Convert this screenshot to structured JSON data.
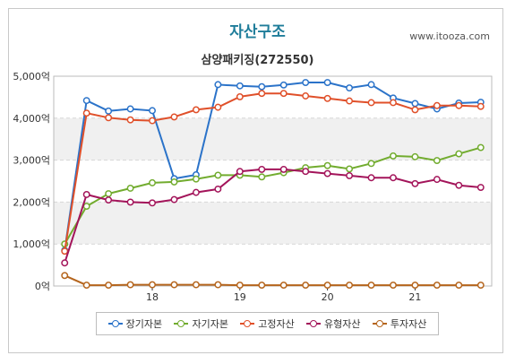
{
  "header": {
    "title": "자산구조",
    "subtitle": "삼양패키징(272550)",
    "source": "www.itooza.com"
  },
  "chart_data": {
    "type": "line",
    "title": "자산구조",
    "subtitle": "삼양패키징(272550)",
    "xlabel": "",
    "ylabel": "",
    "y_tick_labels": [
      "0억",
      "1,000억",
      "2,000억",
      "3,000억",
      "4,000억",
      "5,000억"
    ],
    "y_ticks": [
      0,
      1000,
      2000,
      3000,
      4000,
      5000
    ],
    "ylim": [
      0,
      5000
    ],
    "x_tick_labels": [
      "18",
      "19",
      "20",
      "21"
    ],
    "x_ticks": [
      4,
      8,
      12,
      16
    ],
    "xlim": [
      -0.5,
      19.5
    ],
    "grid": true,
    "legend_position": "bottom",
    "x": [
      0,
      1,
      2,
      3,
      4,
      5,
      6,
      7,
      8,
      9,
      10,
      11,
      12,
      13,
      14,
      15,
      16,
      17,
      18,
      19
    ],
    "series": [
      {
        "name": "장기자본",
        "color": "#2b73c9",
        "values": [
          850,
          4420,
          4170,
          4220,
          4180,
          2560,
          2650,
          4800,
          4770,
          4750,
          4790,
          4850,
          4850,
          4720,
          4800,
          4480,
          4350,
          4220,
          4360,
          4380
        ]
      },
      {
        "name": "자기자본",
        "color": "#72ac2f",
        "values": [
          1000,
          1900,
          2200,
          2330,
          2460,
          2480,
          2550,
          2640,
          2640,
          2600,
          2700,
          2820,
          2870,
          2790,
          2920,
          3100,
          3080,
          2990,
          3150,
          3300
        ]
      },
      {
        "name": "고정자산",
        "color": "#e0502a",
        "values": [
          830,
          4120,
          4010,
          3960,
          3940,
          4030,
          4200,
          4260,
          4510,
          4590,
          4590,
          4530,
          4470,
          4410,
          4370,
          4370,
          4200,
          4300,
          4300,
          4280
        ]
      },
      {
        "name": "유형자산",
        "color": "#a3145a",
        "values": [
          550,
          2180,
          2050,
          2000,
          1980,
          2060,
          2230,
          2310,
          2730,
          2780,
          2780,
          2730,
          2680,
          2630,
          2580,
          2580,
          2440,
          2540,
          2400,
          2350
        ]
      },
      {
        "name": "투자자산",
        "color": "#b5651d",
        "values": [
          250,
          20,
          20,
          30,
          30,
          30,
          30,
          30,
          20,
          20,
          20,
          20,
          20,
          20,
          20,
          20,
          20,
          20,
          20,
          20
        ]
      }
    ]
  }
}
